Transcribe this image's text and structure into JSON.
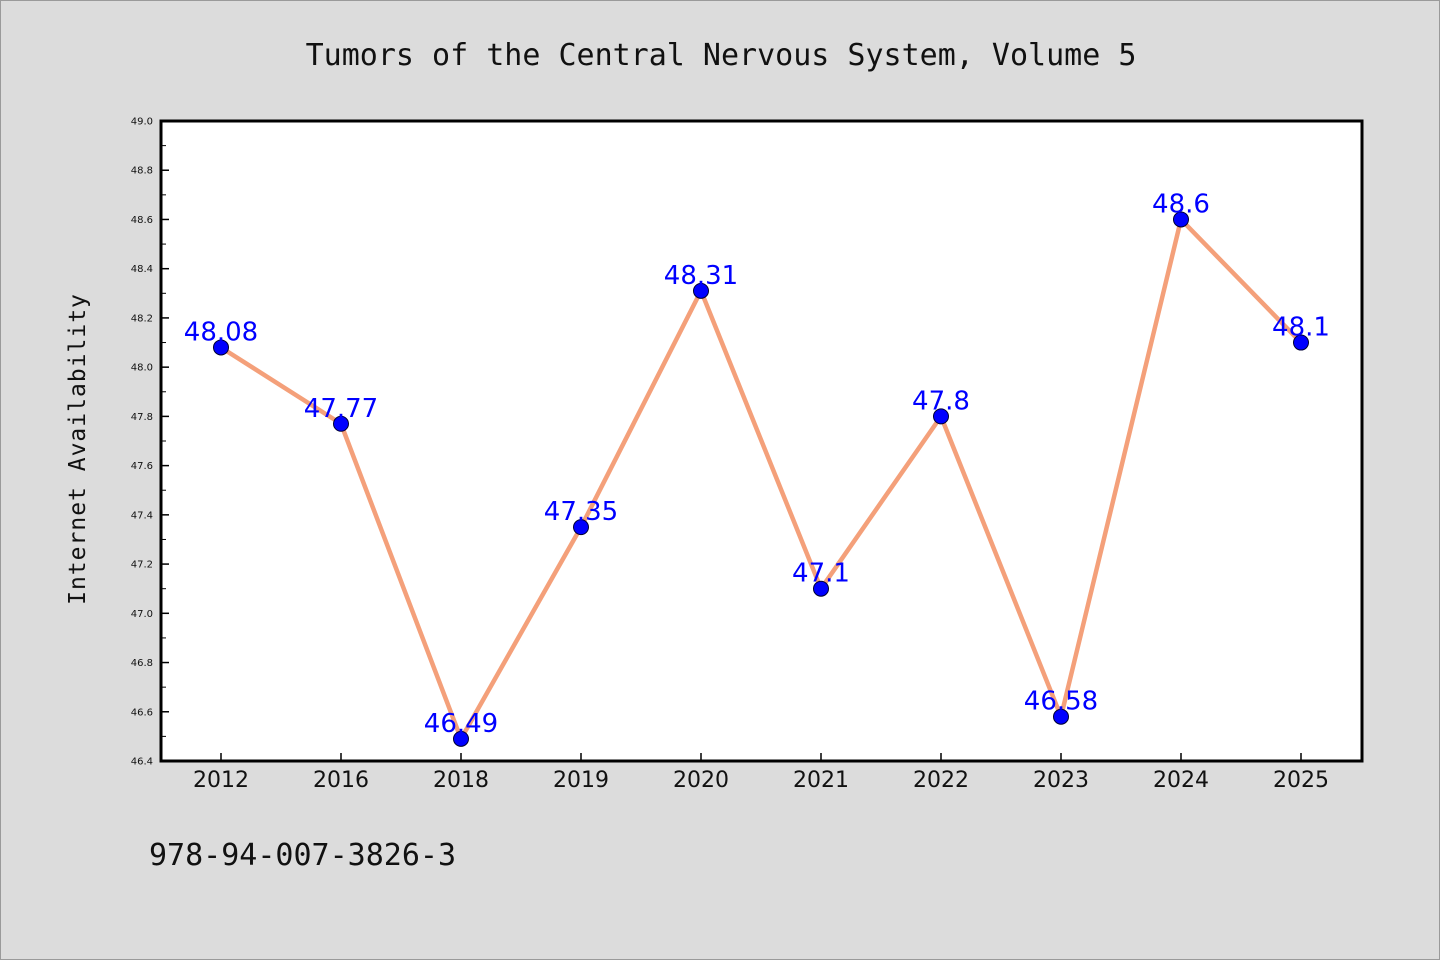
{
  "chart_data": {
    "type": "line",
    "title": "Tumors of the Central Nervous System, Volume 5",
    "xlabel": "",
    "ylabel": "Internet Availability",
    "categories": [
      "2012",
      "2016",
      "2018",
      "2019",
      "2020",
      "2021",
      "2022",
      "2023",
      "2024",
      "2025"
    ],
    "series": [
      {
        "values": [
          48.08,
          47.77,
          46.49,
          47.35,
          48.31,
          47.1,
          47.8,
          46.58,
          48.6,
          48.1
        ],
        "labels": [
          "48.08",
          "47.77",
          "46.49",
          "47.35",
          "48.31",
          "47.1",
          "47.8",
          "46.58",
          "48.6",
          "48.1"
        ],
        "line_color": "#f4a07a",
        "marker_color": "#0000ff"
      }
    ],
    "ylim": [
      46.4,
      49.0
    ],
    "yticks": [
      "46.4",
      "46.6",
      "46.8",
      "47.0",
      "47.2",
      "47.4",
      "47.6",
      "47.8",
      "48.0",
      "48.2",
      "48.4",
      "48.6",
      "48.8",
      "49.0"
    ],
    "grid": false,
    "legend": "none"
  },
  "footer": {
    "code": "978-94-007-3826-3"
  },
  "colors": {
    "background": "#dcdcdc",
    "plot_background": "#ffffff",
    "label_color": "#0000ff"
  }
}
